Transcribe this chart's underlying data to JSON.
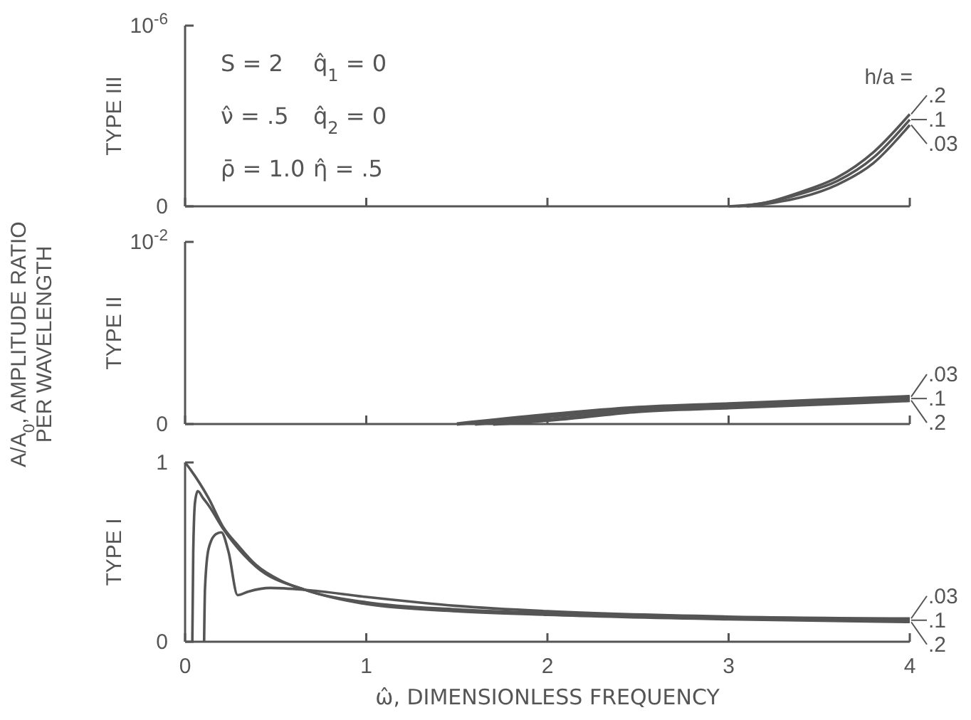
{
  "chart_data": [
    {
      "type": "line",
      "ylabel": "TYPE III",
      "legend_title": "h/a =",
      "legend": "right",
      "tick_labels": "y",
      "xlim": [
        0,
        4
      ],
      "xticks": [
        {
          "value": 0,
          "label": null
        },
        {
          "value": 1,
          "label": null
        },
        {
          "value": 2,
          "label": null
        },
        {
          "value": 3,
          "label": null
        },
        {
          "value": 4,
          "label": null
        }
      ],
      "ylim": [
        0,
        1e-06
      ],
      "yticks": [
        {
          "value": 0,
          "label": "0"
        },
        {
          "value": 1e-06,
          "label": "10$^{-6}$"
        }
      ],
      "annotations": [
        "S = 2",
        "ν̂ = .5",
        "ρ̄ = 1.0",
        "q̂$_{1}$ = 0",
        "q̂$_{2}$ = 0",
        "η̂ = .5"
      ],
      "series": [
        {
          "name": ".2",
          "color": "#555555",
          "x": [
            3.0,
            3.2,
            3.4,
            3.6,
            3.8,
            4.0
          ],
          "values": [
            0,
            2e-08,
            8e-08,
            1.6e-07,
            3e-07,
            5.1e-07
          ]
        },
        {
          "name": ".1",
          "color": "#555555",
          "x": [
            3.05,
            3.2,
            3.4,
            3.6,
            3.8,
            4.0
          ],
          "values": [
            0,
            2e-08,
            7e-08,
            1.4e-07,
            2.7e-07,
            4.8e-07
          ]
        },
        {
          "name": ".03",
          "color": "#555555",
          "x": [
            3.1,
            3.25,
            3.4,
            3.6,
            3.8,
            4.0
          ],
          "values": [
            0,
            2e-08,
            5e-08,
            1.2e-07,
            2.4e-07,
            4.5e-07
          ]
        }
      ]
    },
    {
      "type": "line",
      "ylabel": "TYPE II",
      "legend": "right",
      "tick_labels": "y",
      "xlim": [
        0,
        4
      ],
      "xticks": [
        {
          "value": 0,
          "label": null
        },
        {
          "value": 1,
          "label": null
        },
        {
          "value": 2,
          "label": null
        },
        {
          "value": 3,
          "label": null
        },
        {
          "value": 4,
          "label": null
        }
      ],
      "ylim": [
        0,
        0.01
      ],
      "yticks": [
        {
          "value": 0,
          "label": "0"
        },
        {
          "value": 0.01,
          "label": "10$^{-2}$"
        }
      ],
      "annotations": [
        "A/A$_{0}$, AMPLITUDE RATIO PER WAVELENGTH"
      ],
      "series": [
        {
          "name": ".03",
          "color": "#555555",
          "x": [
            1.5,
            2.0,
            2.5,
            3.0,
            3.5,
            4.0
          ],
          "values": [
            0,
            0.0005,
            0.0009,
            0.0011,
            0.0013,
            0.0015
          ]
        },
        {
          "name": ".1",
          "color": "#555555",
          "x": [
            1.6,
            2.0,
            2.5,
            3.0,
            3.5,
            4.0
          ],
          "values": [
            0,
            0.0004,
            0.0008,
            0.001,
            0.0012,
            0.0014
          ]
        },
        {
          "name": ".2",
          "color": "#555555",
          "x": [
            1.7,
            2.1,
            2.5,
            3.0,
            3.5,
            4.0
          ],
          "values": [
            0,
            0.0003,
            0.0007,
            0.0009,
            0.0011,
            0.0013
          ]
        }
      ]
    },
    {
      "type": "line",
      "ylabel": "TYPE I",
      "xlabel": "ω̂, DIMENSIONLESS FREQUENCY",
      "legend": "right",
      "xlim": [
        0,
        4
      ],
      "xticks": [
        0,
        1,
        2,
        3,
        4
      ],
      "ylim": [
        0,
        1
      ],
      "yticks": [
        0,
        1
      ],
      "series": [
        {
          "name": ".03",
          "color": "#555555",
          "x": [
            0.105,
            0.11,
            0.13,
            0.17,
            0.2,
            0.24,
            0.29,
            0.35,
            0.47,
            0.66,
            1.0,
            1.5,
            2.0,
            3.0,
            4.0
          ],
          "values": [
            0,
            0.3,
            0.52,
            0.6,
            0.61,
            0.5,
            0.26,
            0.28,
            0.3,
            0.29,
            0.25,
            0.2,
            0.17,
            0.14,
            0.13
          ]
        },
        {
          "name": ".1",
          "color": "#555555",
          "x": [
            0.04,
            0.045,
            0.055,
            0.07,
            0.1,
            0.13,
            0.21,
            0.39,
            0.66,
            1.0,
            1.5,
            2.0,
            3.0,
            4.0
          ],
          "values": [
            0,
            0.5,
            0.78,
            0.84,
            0.8,
            0.76,
            0.63,
            0.42,
            0.29,
            0.22,
            0.18,
            0.16,
            0.13,
            0.12
          ]
        },
        {
          "name": ".2",
          "color": "#555555",
          "x": [
            0,
            0.03,
            0.13,
            0.21,
            0.29,
            0.39,
            0.53,
            0.66,
            1.0,
            1.5,
            2.0,
            3.0,
            4.0
          ],
          "values": [
            1,
            0.96,
            0.8,
            0.64,
            0.54,
            0.43,
            0.34,
            0.29,
            0.21,
            0.17,
            0.15,
            0.125,
            0.11
          ]
        }
      ]
    }
  ]
}
